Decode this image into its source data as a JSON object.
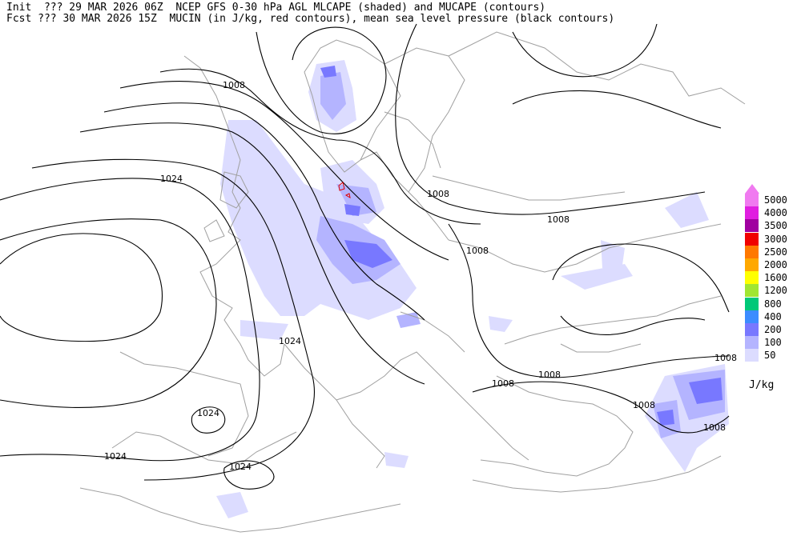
{
  "header": {
    "line1": "Init  ??? 29 MAR 2026 06Z  NCEP GFS 0-30 hPa AGL MLCAPE (shaded) and MUCAPE (contours)",
    "line2": "Fcst ??? 30 MAR 2026 15Z  MUCIN (in J/kg, red contours), mean sea level pressure (black contours)"
  },
  "legend": {
    "unit": "J/kg",
    "levels": [
      {
        "label": "5000",
        "color": "#f07af0"
      },
      {
        "label": "4000",
        "color": "#e01ee0"
      },
      {
        "label": "3500",
        "color": "#a000a0"
      },
      {
        "label": "3000",
        "color": "#f00000"
      },
      {
        "label": "2500",
        "color": "#ff7800"
      },
      {
        "label": "2000",
        "color": "#ffa800"
      },
      {
        "label": "1600",
        "color": "#ffff00"
      },
      {
        "label": "1200",
        "color": "#a0e632"
      },
      {
        "label": "800",
        "color": "#00c878"
      },
      {
        "label": "400",
        "color": "#3c8cff"
      },
      {
        "label": "200",
        "color": "#7878ff"
      },
      {
        "label": "100",
        "color": "#b4b4ff"
      },
      {
        "label": "50",
        "color": "#dcdcff"
      }
    ]
  },
  "isobar_labels": [
    "1008",
    "1024",
    "1008",
    "1008",
    "1008",
    "1024",
    "1024",
    "1024",
    "1024",
    "1008",
    "1008",
    "1008",
    "1008",
    "1008"
  ],
  "colors": {
    "coast": "#a0a0a0",
    "isobar": "#000000",
    "mucin": "#e00000"
  }
}
